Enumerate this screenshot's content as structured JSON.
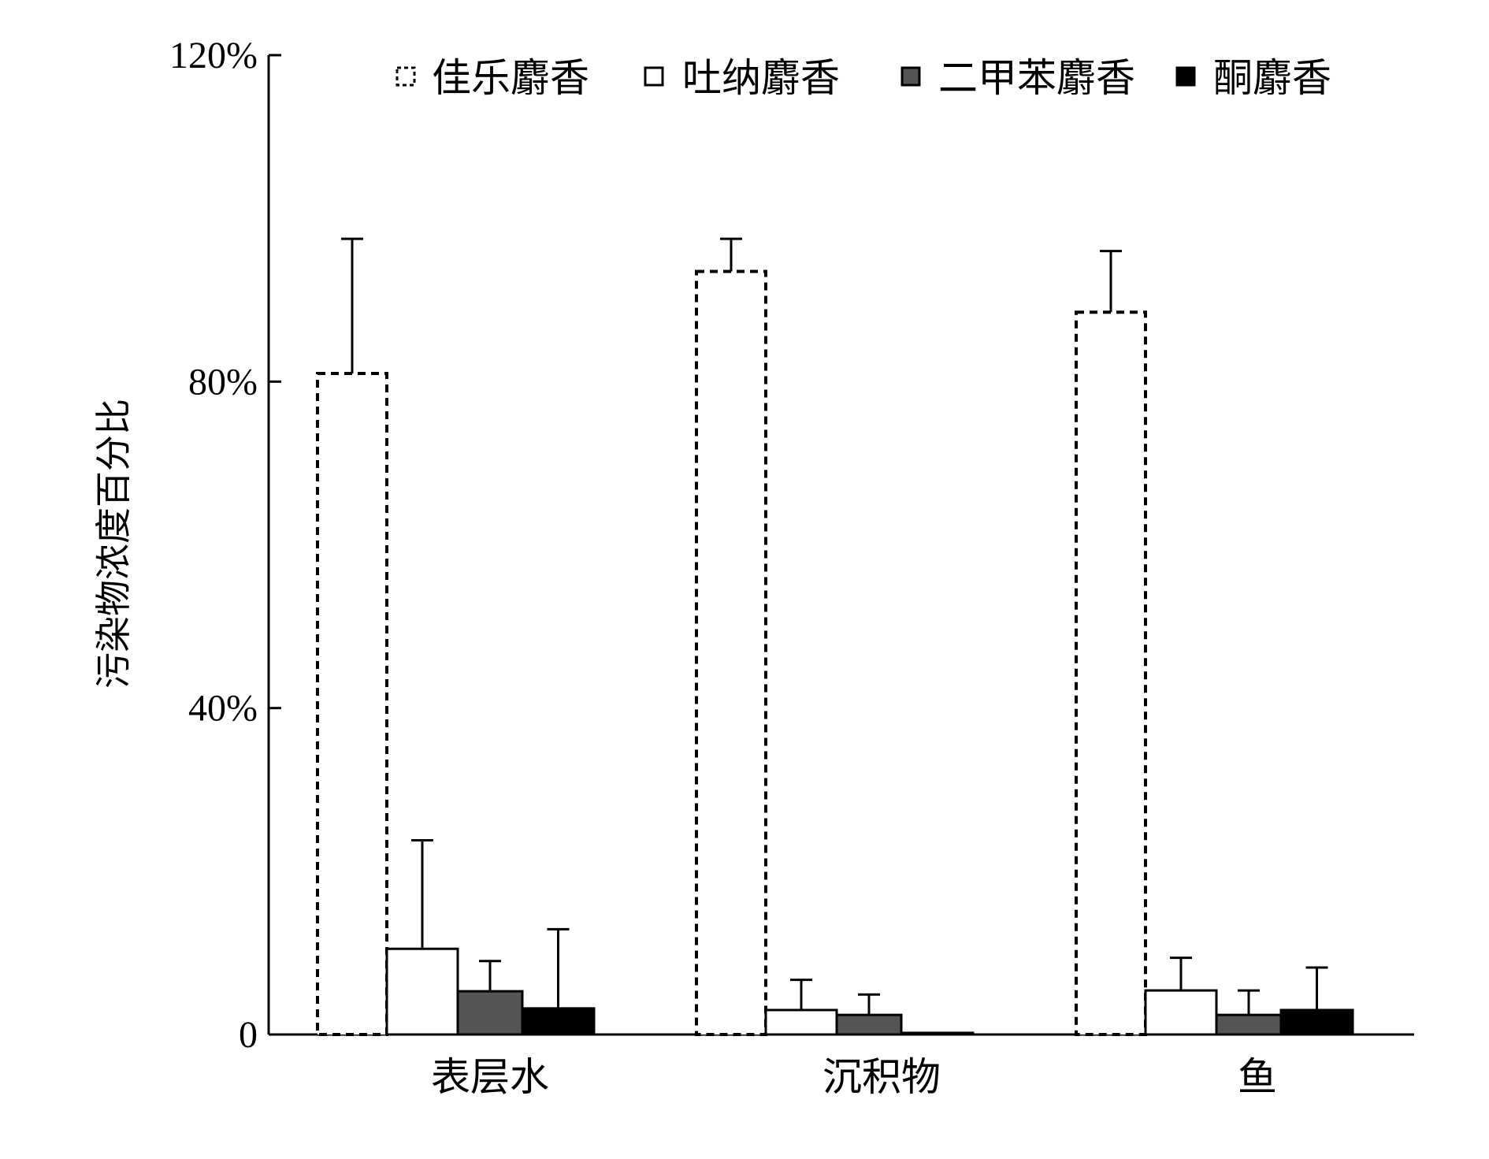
{
  "chart_data": {
    "type": "bar",
    "title": "",
    "xlabel": "",
    "ylabel": "污染物浓度百分比",
    "ylim": [
      0,
      1.2
    ],
    "yticks": [
      0,
      0.4,
      0.8,
      1.2
    ],
    "ytick_labels": [
      "0",
      "40%",
      "80%",
      "120%"
    ],
    "categories": [
      "表层水",
      "沉积物",
      "鱼"
    ],
    "grid": false,
    "legend_position": "top",
    "series": [
      {
        "name": "佳乐麝香",
        "style": "dashed-outline",
        "fill": "#ffffff",
        "stroke": "#000000",
        "values": [
          0.81,
          0.935,
          0.885
        ],
        "errors": [
          0.165,
          0.04,
          0.075
        ]
      },
      {
        "name": "吐纳麝香",
        "style": "outline",
        "fill": "#ffffff",
        "stroke": "#000000",
        "values": [
          0.105,
          0.03,
          0.054
        ],
        "errors": [
          0.133,
          0.037,
          0.04
        ]
      },
      {
        "name": "二甲苯麝香",
        "style": "solid",
        "fill": "#555555",
        "stroke": "#000000",
        "values": [
          0.053,
          0.024,
          0.024
        ],
        "errors": [
          0.037,
          0.025,
          0.03
        ]
      },
      {
        "name": "酮麝香",
        "style": "solid",
        "fill": "#000000",
        "stroke": "#000000",
        "values": [
          0.032,
          0.002,
          0.03
        ],
        "errors": [
          0.097,
          0.0,
          0.052
        ]
      }
    ]
  }
}
